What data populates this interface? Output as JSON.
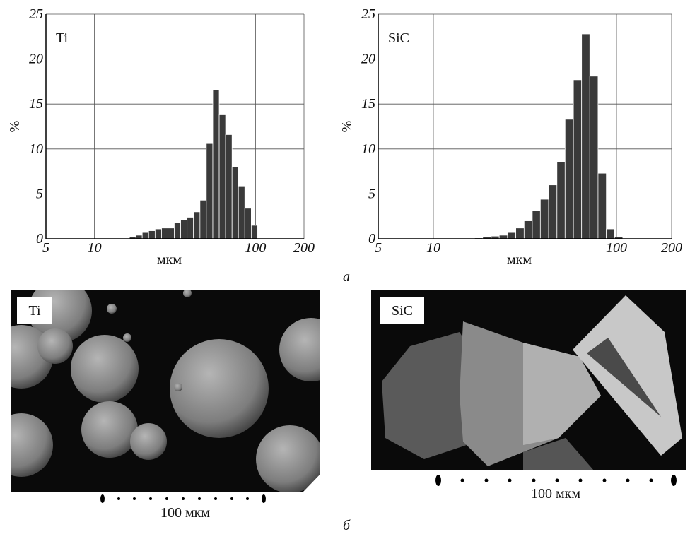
{
  "chart_data": [
    {
      "type": "histogram",
      "label": "Ti",
      "xlabel": "мкм",
      "ylabel": "%",
      "color": "#3a3a3a",
      "xscale": "log",
      "xlim": [
        5,
        200
      ],
      "xticks": [
        5,
        10,
        100,
        200
      ],
      "ylim": [
        0,
        25
      ],
      "yticks": [
        0,
        5,
        10,
        15,
        20,
        25
      ],
      "grid": true,
      "bins": [
        16.5,
        18.1,
        19.8,
        21.7,
        23.8,
        26.1,
        28.6,
        31.3,
        34.3,
        37.6,
        41.2,
        45.2,
        49.5,
        54.3,
        59.5,
        65.2,
        71.5,
        78.3,
        85.8,
        94.1,
        103.1
      ],
      "values": [
        0.2,
        0.4,
        0.7,
        0.9,
        1.1,
        1.2,
        1.2,
        1.8,
        2.1,
        2.4,
        3.0,
        4.3,
        10.6,
        16.6,
        13.8,
        11.6,
        8.0,
        5.8,
        3.4,
        1.5
      ]
    },
    {
      "type": "histogram",
      "label": "SiC",
      "xlabel": "мкм",
      "ylabel": "%",
      "color": "#3a3a3a",
      "xscale": "log",
      "xlim": [
        5,
        200
      ],
      "xticks": [
        5,
        10,
        100,
        200
      ],
      "ylim": [
        0,
        25
      ],
      "yticks": [
        0,
        5,
        10,
        15,
        20,
        25
      ],
      "grid": true,
      "bins": [
        16.8,
        18.6,
        20.7,
        22.9,
        25.4,
        28.2,
        31.3,
        34.7,
        38.4,
        42.6,
        47.3,
        52.4,
        58.2,
        64.5,
        71.5,
        79.3,
        88.0,
        97.6,
        108.2
      ],
      "values": [
        0.1,
        0.2,
        0.3,
        0.4,
        0.7,
        1.2,
        2.0,
        3.1,
        4.4,
        6.0,
        8.6,
        13.3,
        17.7,
        22.8,
        18.1,
        7.3,
        1.1,
        0.2
      ]
    }
  ],
  "caption_a": "а",
  "images": [
    {
      "label": "Ti",
      "scale": "100 мкм"
    },
    {
      "label": "SiC",
      "scale": "100 мкм"
    }
  ],
  "caption_b": "б"
}
